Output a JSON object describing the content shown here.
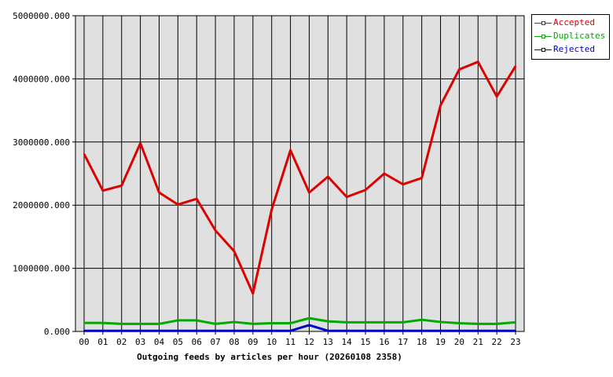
{
  "chart_data": {
    "type": "line",
    "title": "Outgoing feeds by articles per hour (20260108 2358)",
    "xlabel": "Outgoing feeds by articles per hour (20260108 2358)",
    "ylabel": "",
    "categories": [
      "00",
      "01",
      "02",
      "03",
      "04",
      "05",
      "06",
      "07",
      "08",
      "09",
      "10",
      "11",
      "12",
      "13",
      "14",
      "15",
      "16",
      "17",
      "18",
      "19",
      "20",
      "21",
      "22",
      "23"
    ],
    "ylim": [
      0,
      5000000
    ],
    "yticks": [
      "0.000",
      "1000000.000",
      "2000000.000",
      "3000000.000",
      "4000000.000",
      "5000000.000"
    ],
    "grid": true,
    "legend_position": "top-right",
    "background": "#e0e0e0",
    "series": [
      {
        "name": "Accepted",
        "color": "#dd0000",
        "values": [
          2810000,
          2230000,
          2310000,
          2980000,
          2200000,
          2010000,
          2100000,
          1600000,
          1270000,
          600000,
          1930000,
          2870000,
          2200000,
          2450000,
          2130000,
          2240000,
          2500000,
          2330000,
          2430000,
          3580000,
          4150000,
          4270000,
          3720000,
          4200000
        ]
      },
      {
        "name": "Duplicates",
        "color": "#00aa00",
        "values": [
          135000,
          135000,
          120000,
          120000,
          120000,
          175000,
          175000,
          120000,
          150000,
          120000,
          130000,
          130000,
          210000,
          160000,
          145000,
          145000,
          145000,
          145000,
          185000,
          150000,
          130000,
          120000,
          120000,
          145000
        ]
      },
      {
        "name": "Rejected",
        "color": "#0000cc",
        "values": [
          10000,
          10000,
          10000,
          10000,
          10000,
          10000,
          10000,
          10000,
          10000,
          10000,
          10000,
          10000,
          100000,
          10000,
          10000,
          10000,
          10000,
          10000,
          10000,
          10000,
          10000,
          10000,
          10000,
          10000
        ]
      }
    ]
  }
}
